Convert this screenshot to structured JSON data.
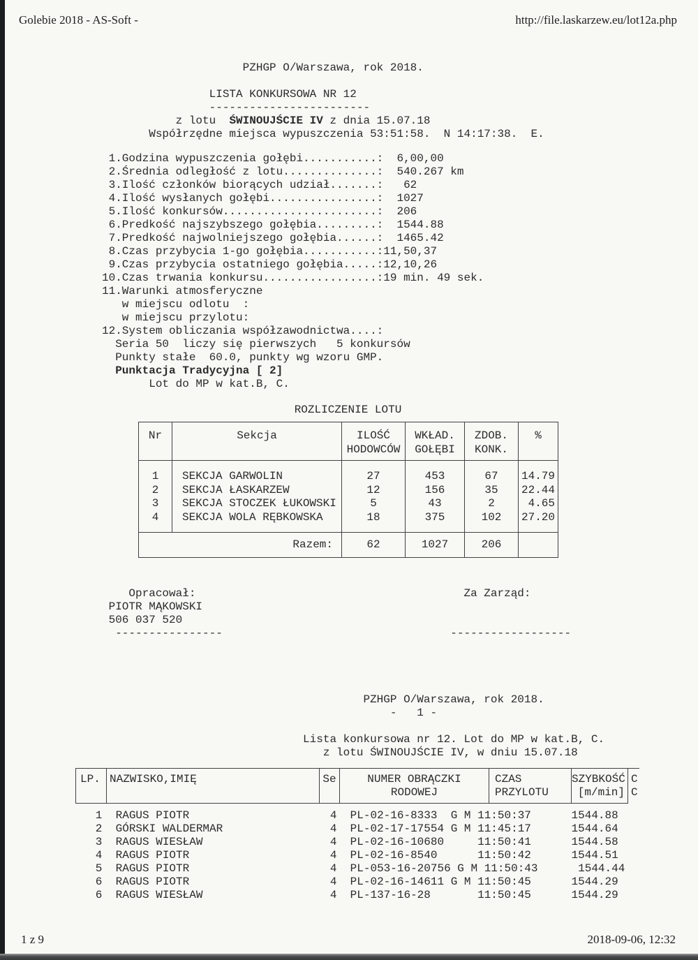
{
  "browser_header": {
    "left": "Golebie 2018 - AS-Soft -",
    "right": "http://file.laskarzew.eu/lot12a.php"
  },
  "browser_footer": {
    "left": "1 z 9",
    "right": "2018-09-06, 12:32"
  },
  "report": {
    "header_lines": [
      "                     PZHGP O/Warszawa, rok 2018.",
      " ",
      "                LISTA KONKURSOWA NR 12",
      "                ------------------------",
      [
        {
          "t": "           z lotu  "
        },
        {
          "t": "ŚWINOUJŚCIE IV",
          "b": true
        },
        {
          "t": " z dnia 15.07.18"
        }
      ],
      "       Współrzędne miejsca wypuszczenia 53:51:58.  N 14:17:38.  E."
    ],
    "stats_lines": [
      " 1.Godzina wypuszczenia gołębi...........:  6,00,00",
      " 2.Średnia odległość z lotu..............:  540.267 km",
      " 3.Ilość członków biorących udział.......:   62",
      " 4.Ilość wysłanych gołębi................:  1027",
      " 5.Ilość konkursów.......................:  206",
      " 6.Predkość najszybszego gołębia.........:  1544.88",
      " 7.Predkość najwolniejszego gołębia......:  1465.42",
      " 8.Czas przybycia 1-go gołębia...........:11,50,37",
      " 9.Czas przybycia ostatniego gołębia.....:12,10,26",
      "10.Czas trwania konkursu.................:19 min. 49 sek.",
      "11.Warunki atmosferyczne",
      "   w miejscu odlotu  :",
      "   w miejscu przylotu:",
      "12.System obliczania współzawodnictwa....:",
      "  Seria 50  liczy się pierwszych   5 konkursów",
      "  Punkty stałe  60.0, punkty wg wzoru GMP.",
      [
        {
          "t": "  "
        },
        {
          "t": "Punktacja Tradycyjna [ 2]",
          "b": true
        }
      ],
      "       Lot do MP w kat.B, C."
    ]
  },
  "rozliczenie": {
    "title": "ROZLICZENIE LOTU",
    "headers": {
      "nr": "Nr",
      "sekcja": "Sekcja",
      "ilosc_l1": "ILOŚĆ",
      "ilosc_l2": "HODOWCÓW",
      "wklad_l1": "WKŁAD.",
      "wklad_l2": "GOŁĘBI",
      "zdob_l1": "ZDOB.",
      "zdob_l2": "KONK.",
      "pct": "%"
    },
    "rows": [
      [
        "1",
        "SEKCJA GARWOLIN",
        "27",
        "453",
        "67",
        "14.79"
      ],
      [
        "2",
        "SEKCJA ŁASKARZEW",
        "12",
        "156",
        "35",
        "22.44"
      ],
      [
        "3",
        "SEKCJA STOCZEK ŁUKOWSKI",
        "5",
        "43",
        "2",
        "4.65"
      ],
      [
        "4",
        "SEKCJA WOLA RĘBKOWSKA",
        "18",
        "375",
        "102",
        "27.20"
      ]
    ],
    "razem": {
      "label": "Razem:",
      "hodowcy": "62",
      "golebie": "1027",
      "konkursy": "206"
    }
  },
  "signatures": {
    "lines": [
      "    Opracował:                                        Za Zarząd:",
      " PIOTR MĄKOWSKI",
      " 506 037 520",
      "  ----------------                                  ------------------"
    ]
  },
  "page2": {
    "lines": [
      "                                       PZHGP O/Warszawa, rok 2018.",
      "                                           -   1 -",
      " ",
      "                              Lista konkursowa nr 12. Lot do MP w kat.B, C.",
      "                                 z lotu ŚWINOUJŚCIE IV, w dniu 15.07.18"
    ]
  },
  "results": {
    "headers": {
      "lp": "LP.",
      "name": "NAZWISKO,IMIĘ",
      "se": "Se",
      "ring_l1": "NUMER OBRĄCZKI",
      "ring_l2": "RODOWEJ",
      "time_l1": "CZAS",
      "time_l2": "PRZYLOTU",
      "speed_l1": "SZYBKOŚĆ",
      "speed_l2": "[m/min]",
      "c_l1": "C",
      "c_l2": "C"
    },
    "rows": [
      {
        "rank": "1",
        "name": "RAGUS PIOTR",
        "se": "4",
        "ring": "PL-02-16-8333",
        "gm": "G M",
        "time": "11:50:37",
        "speed": "1544.88"
      },
      {
        "rank": "2",
        "name": "GÓRSKI WALDERMAR",
        "se": "4",
        "ring": "PL-02-17-17554",
        "gm": "G M",
        "time": "11:45:17",
        "speed": "1544.64"
      },
      {
        "rank": "3",
        "name": "RAGUS WIESŁAW",
        "se": "4",
        "ring": "PL-02-16-10680",
        "gm": "",
        "time": "11:50:41",
        "speed": "1544.58"
      },
      {
        "rank": "4",
        "name": "RAGUS PIOTR",
        "se": "4",
        "ring": "PL-02-16-8540",
        "gm": "",
        "time": "11:50:42",
        "speed": "1544.51"
      },
      {
        "rank": "5",
        "name": "RAGUS PIOTR",
        "se": "4",
        "ring": "PL-053-16-20756",
        "gm": "G M",
        "time": "11:50:43",
        "speed": "1544.44"
      },
      {
        "rank": "6",
        "name": "RAGUS PIOTR",
        "se": "4",
        "ring": "PL-02-16-14611",
        "gm": "G M",
        "time": "11:50:45",
        "speed": "1544.29"
      },
      {
        "rank": "6",
        "name": "RAGUS WIESŁAW",
        "se": "4",
        "ring": "PL-137-16-28",
        "gm": "",
        "time": "11:50:45",
        "speed": "1544.29"
      }
    ]
  }
}
